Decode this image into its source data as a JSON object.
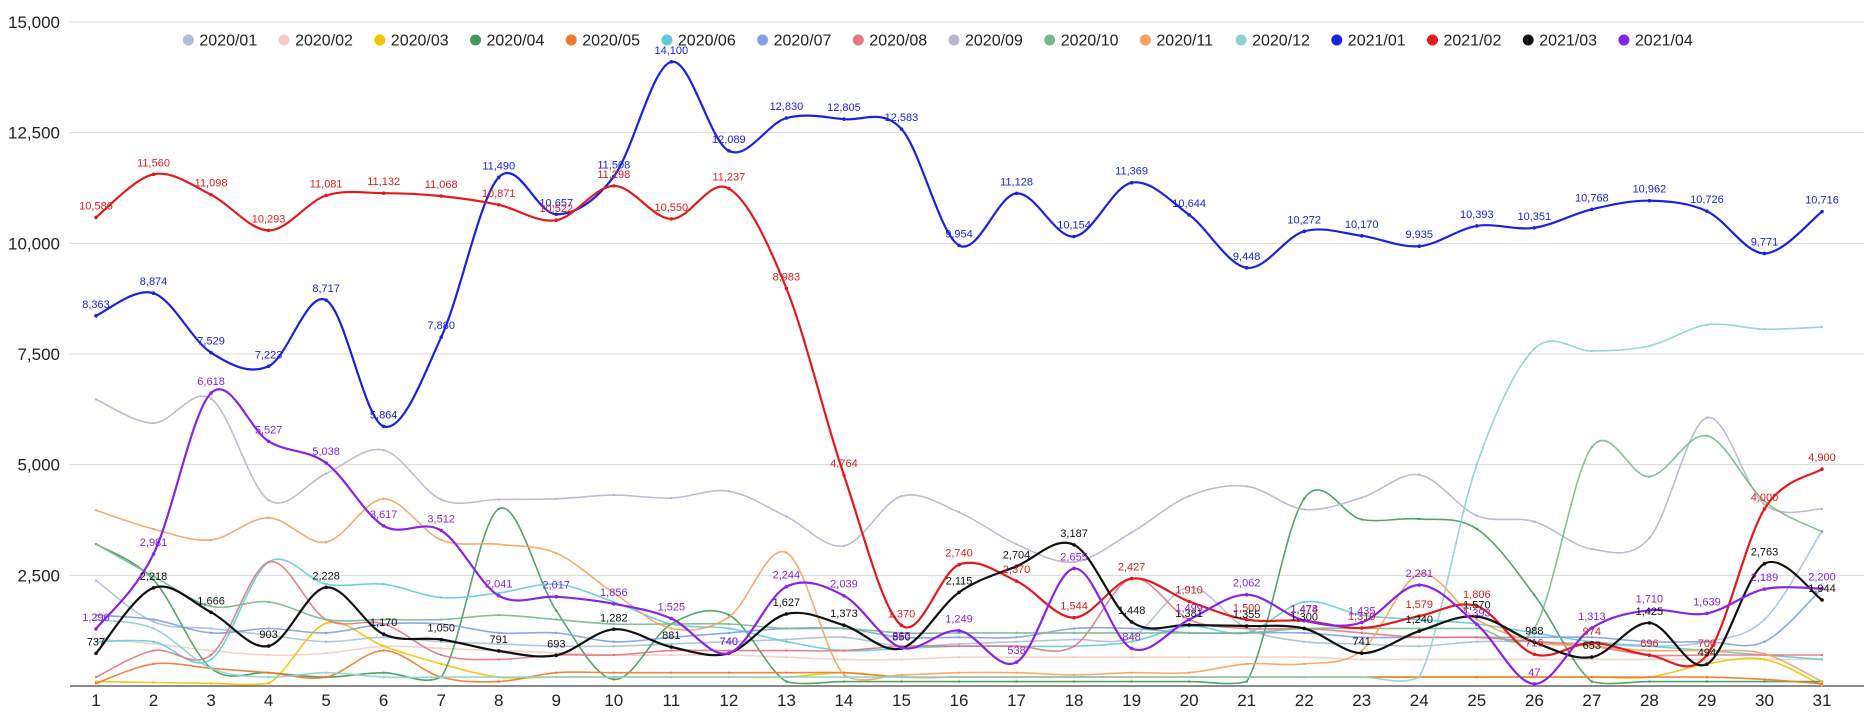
{
  "chart_data": {
    "type": "line",
    "title": "",
    "xlabel": "",
    "ylabel": "",
    "ylim": [
      0,
      15000
    ],
    "yticks": [
      2500,
      5000,
      7500,
      10000,
      12500,
      15000
    ],
    "ytick_labels": [
      "2,500",
      "5,000",
      "7,500",
      "10,000",
      "12,500",
      "15,000"
    ],
    "categories": [
      "1",
      "2",
      "3",
      "4",
      "5",
      "6",
      "7",
      "8",
      "9",
      "10",
      "11",
      "12",
      "13",
      "14",
      "15",
      "16",
      "17",
      "18",
      "19",
      "20",
      "21",
      "22",
      "23",
      "24",
      "25",
      "26",
      "27",
      "28",
      "29",
      "30",
      "31"
    ],
    "grid": true,
    "legend_position": "top",
    "series": [
      {
        "name": "2020/01",
        "color": "#a9c0d8",
        "labeled": false,
        "values": [
          2383,
          1450,
          1300,
          1150,
          1000,
          1100,
          1000,
          950,
          900,
          900,
          950,
          1000,
          1050,
          1100,
          900,
          950,
          1000,
          1050,
          1100,
          2227,
          1300,
          1000,
          950,
          900,
          1000,
          1000,
          950,
          900,
          1000,
          1500,
          3500
        ]
      },
      {
        "name": "2020/02",
        "color": "#f4ccc4",
        "labeled": false,
        "values": [
          1064,
          955,
          800,
          700,
          740,
          900,
          850,
          800,
          750,
          700,
          700,
          700,
          650,
          600,
          600,
          650,
          650,
          650,
          650,
          650,
          650,
          650,
          600,
          600,
          600,
          600,
          600,
          600,
          600,
          600,
          600
        ]
      },
      {
        "name": "2020/03",
        "color": "#f2c200",
        "labeled": false,
        "values": [
          100,
          80,
          60,
          60,
          1418,
          900,
          500,
          200,
          200,
          200,
          200,
          200,
          200,
          300,
          200,
          200,
          200,
          200,
          200,
          200,
          200,
          200,
          200,
          200,
          200,
          200,
          200,
          200,
          500,
          600,
          18
        ]
      },
      {
        "name": "2020/04",
        "color": "#3f9a5c",
        "labeled": false,
        "values": [
          3207,
          2400,
          400,
          300,
          200,
          300,
          200,
          4000,
          1700,
          150,
          1400,
          1604,
          100,
          100,
          100,
          100,
          100,
          100,
          100,
          100,
          100,
          4234,
          3761,
          3775,
          3550,
          2056,
          100,
          100,
          100,
          100,
          100
        ]
      },
      {
        "name": "2020/05",
        "color": "#f0782a",
        "labeled": false,
        "values": [
          60,
          500,
          400,
          300,
          200,
          800,
          200,
          100,
          300,
          300,
          300,
          300,
          300,
          300,
          200,
          200,
          200,
          200,
          200,
          200,
          200,
          200,
          200,
          200,
          200,
          200,
          200,
          200,
          200,
          150,
          50
        ]
      },
      {
        "name": "2020/06",
        "color": "#5ccdd8",
        "labeled": false,
        "values": [
          1000,
          1000,
          600,
          2800,
          2300,
          2300,
          2000,
          2100,
          2300,
          1900,
          1400,
          1300,
          1000,
          800,
          850,
          900,
          900,
          900,
          1000,
          1350,
          1200,
          1900,
          1600,
          1500,
          1400,
          1200,
          1000,
          900,
          800,
          700,
          600
        ]
      },
      {
        "name": "2020/07",
        "color": "#7f9fe8",
        "labeled": false,
        "values": [
          1600,
          1500,
          1200,
          1300,
          1200,
          1400,
          1400,
          1200,
          1200,
          1000,
          1100,
          1200,
          1300,
          1300,
          1100,
          1100,
          1100,
          1300,
          1300,
          1200,
          1200,
          1200,
          1100,
          1100,
          1100,
          1100,
          1100,
          1000,
          1000,
          1000,
          2200
        ]
      },
      {
        "name": "2020/08",
        "color": "#e27580",
        "labeled": false,
        "values": [
          200,
          800,
          700,
          2800,
          1500,
          1400,
          700,
          600,
          700,
          700,
          800,
          800,
          800,
          800,
          900,
          900,
          900,
          900,
          2427,
          1500,
          1300,
          1300,
          1200,
          1100,
          1100,
          1000,
          900,
          700,
          700,
          700,
          700
        ]
      },
      {
        "name": "2020/09",
        "color": "#b9b4cd",
        "labeled": false,
        "values": [
          6474,
          5939,
          6489,
          4200,
          4800,
          5330,
          4211,
          4214,
          4229,
          4312,
          4245,
          4401,
          3829,
          3165,
          4288,
          3925,
          3200,
          2800,
          3468,
          4292,
          4511,
          3990,
          4254,
          4772,
          3849,
          3713,
          3092,
          3344,
          6060,
          4100,
          4000
        ]
      },
      {
        "name": "2020/10",
        "color": "#78b88c",
        "labeled": false,
        "values": [
          3207,
          2479,
          1800,
          1900,
          1500,
          1500,
          1500,
          1600,
          1500,
          1400,
          1400,
          1400,
          1300,
          1300,
          1200,
          1200,
          1200,
          1200,
          1200,
          1200,
          1200,
          1300,
          1300,
          1300,
          1300,
          1300,
          5400,
          4731,
          5652,
          4174,
          3484
        ]
      },
      {
        "name": "2020/11",
        "color": "#f6a25c",
        "labeled": false,
        "values": [
          3969,
          3544,
          3300,
          3800,
          3250,
          4227,
          3300,
          3200,
          3000,
          2100,
          1300,
          1557,
          3015,
          250,
          250,
          300,
          300,
          250,
          300,
          300,
          500,
          500,
          800,
          2521,
          1500,
          1000,
          900,
          800,
          800,
          727,
          100
        ]
      },
      {
        "name": "2020/12",
        "color": "#8ad3cc",
        "labeled": false,
        "values": [
          1500,
          1300,
          400,
          200,
          300,
          200,
          200,
          200,
          200,
          200,
          200,
          200,
          200,
          200,
          200,
          200,
          200,
          200,
          200,
          200,
          200,
          200,
          200,
          200,
          5000,
          7616,
          7567,
          7683,
          8160,
          8061,
          8108
        ]
      },
      {
        "name": "2021/01",
        "color": "#1a22e0",
        "labeled": true,
        "values": [
          8363,
          8874,
          7529,
          7223,
          8717,
          5864,
          7880,
          11490,
          10657,
          11508,
          14100,
          12089,
          12830,
          12805,
          12583,
          9954,
          11128,
          10154,
          11369,
          10644,
          9448,
          10272,
          10170,
          9935,
          10393,
          10351,
          10768,
          10962,
          10726,
          9771,
          10716
        ]
      },
      {
        "name": "2021/02",
        "color": "#e31a1c",
        "labeled": true,
        "values": [
          10586,
          11560,
          11098,
          10293,
          11081,
          11132,
          11068,
          10871,
          10522,
          11298,
          10550,
          11237,
          8983,
          4764,
          1370,
          2740,
          2370,
          1544,
          2427,
          1910,
          1500,
          1474,
          1310,
          1579,
          1806,
          716,
          974,
          696,
          700,
          4000,
          4900
        ]
      },
      {
        "name": "2021/03",
        "color": "#111111",
        "labeled": true,
        "values": [
          737,
          2218,
          1666,
          903,
          2228,
          1170,
          1050,
          791,
          693,
          1282,
          881,
          740,
          1627,
          1373,
          850,
          2115,
          2704,
          3187,
          1448,
          1381,
          1355,
          1300,
          741,
          1240,
          1570,
          988,
          653,
          1425,
          494,
          2763,
          1944
        ]
      },
      {
        "name": "2021/04",
        "color": "#8a23e6",
        "labeled": true,
        "values": [
          1290,
          2981,
          6618,
          5527,
          5038,
          3617,
          3512,
          2041,
          2017,
          1856,
          1525,
          740,
          2244,
          2039,
          865,
          1249,
          538,
          2655,
          848,
          1499,
          2062,
          1478,
          1435,
          2281,
          1393,
          47,
          1313,
          1710,
          1639,
          2189,
          2200
        ]
      }
    ]
  }
}
